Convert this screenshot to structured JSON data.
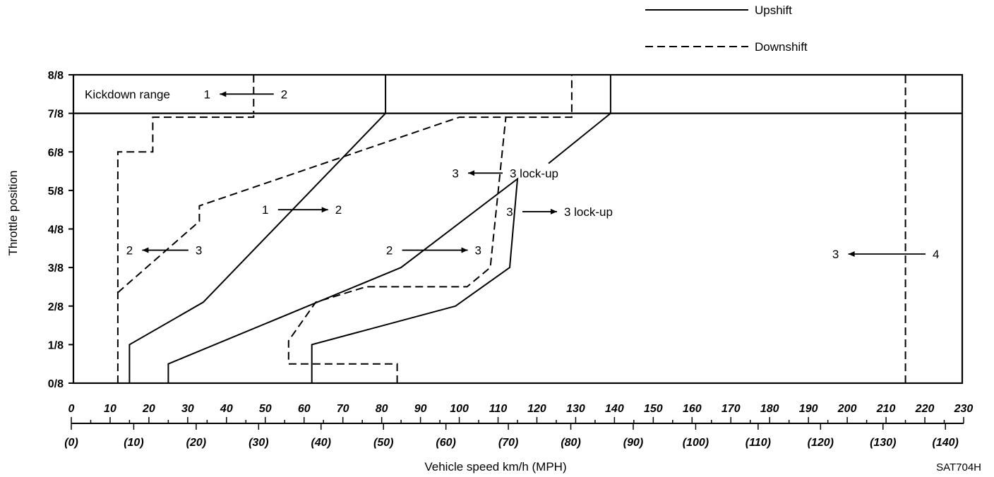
{
  "chart_data": {
    "type": "line",
    "xlabel": "Vehicle speed  km/h (MPH)",
    "ylabel": "Throttle position",
    "xlim": [
      0,
      230
    ],
    "ylim": [
      0,
      8
    ],
    "x_ticks_kmh": [
      "0",
      "10",
      "20",
      "30",
      "40",
      "50",
      "60",
      "70",
      "80",
      "90",
      "100",
      "110",
      "120",
      "130",
      "140",
      "150",
      "160",
      "170",
      "180",
      "190",
      "200",
      "210",
      "220",
      "230"
    ],
    "x_ticks_mph": [
      "(0)",
      "(10)",
      "(20)",
      "(30)",
      "(40)",
      "(50)",
      "(60)",
      "(70)",
      "(80)",
      "(90)",
      "(100)",
      "(110)",
      "(120)",
      "(130)",
      "(140)"
    ],
    "y_ticks": [
      "0/8",
      "1/8",
      "2/8",
      "3/8",
      "4/8",
      "5/8",
      "6/8",
      "7/8",
      "8/8"
    ],
    "legend": {
      "placement": "top-right",
      "entries": [
        {
          "label": "Upshift",
          "style": "solid"
        },
        {
          "label": "Downshift",
          "style": "dashed"
        }
      ]
    },
    "kickdown_label": "Kickdown range",
    "code": "SAT704H",
    "series": [
      {
        "style": "solid",
        "points": [
          [
            15,
            0
          ],
          [
            15,
            1
          ],
          [
            34,
            2.1
          ],
          [
            81,
            7
          ],
          [
            81,
            8
          ]
        ]
      },
      {
        "style": "solid",
        "points": [
          [
            25,
            0
          ],
          [
            25,
            0.5
          ],
          [
            85,
            3
          ],
          [
            115,
            5.3
          ],
          [
            113,
            3
          ],
          [
            99,
            2
          ],
          [
            62,
            1
          ],
          [
            62,
            0
          ]
        ]
      },
      {
        "style": "solid",
        "points": [
          [
            139,
            7
          ],
          [
            123,
            5.7
          ]
        ]
      },
      {
        "style": "solid",
        "points": [
          [
            139,
            7
          ],
          [
            139,
            8
          ]
        ]
      },
      {
        "style": "dashed",
        "points": [
          [
            47,
            8
          ],
          [
            47,
            7
          ]
        ]
      },
      {
        "style": "dashed",
        "points": [
          [
            12,
            0
          ],
          [
            12,
            6
          ],
          [
            21,
            6
          ],
          [
            21,
            6.9
          ],
          [
            47,
            6.9
          ],
          [
            47,
            7
          ]
        ]
      },
      {
        "style": "dashed",
        "points": [
          [
            12,
            2.35
          ],
          [
            33,
            4.2
          ],
          [
            33,
            4.6
          ],
          [
            100,
            6.9
          ],
          [
            129,
            6.9
          ],
          [
            129,
            8
          ]
        ]
      },
      {
        "style": "dashed",
        "points": [
          [
            84,
            0
          ],
          [
            84,
            0.5
          ],
          [
            56,
            0.5
          ],
          [
            56,
            1.1
          ],
          [
            63,
            2.1
          ],
          [
            76,
            2.5
          ],
          [
            102,
            2.5
          ],
          [
            108,
            3
          ],
          [
            112,
            6.9
          ]
        ]
      },
      {
        "style": "dashed",
        "points": [
          [
            215,
            0
          ],
          [
            215,
            8
          ]
        ]
      }
    ],
    "annotations": [
      {
        "left": "1",
        "right": "2",
        "arrow": "left",
        "x": [
          35,
          54
        ],
        "y": 7.5
      },
      {
        "left": "1",
        "right": "2",
        "arrow": "right",
        "x": [
          50,
          68
        ],
        "y": 4.5
      },
      {
        "left": "2",
        "right": "3",
        "arrow": "left",
        "x": [
          15,
          32
        ],
        "y": 3.45
      },
      {
        "left": "2",
        "right": "3",
        "arrow": "right",
        "x": [
          82,
          104
        ],
        "y": 3.45
      },
      {
        "left": "3",
        "right": "3 lock-up",
        "arrow": "left",
        "x": [
          99,
          113
        ],
        "y": 5.45
      },
      {
        "left": "3",
        "right": "3 lock-up",
        "arrow": "right",
        "x": [
          113,
          127
        ],
        "y": 4.45
      },
      {
        "left": "3",
        "right": "4",
        "arrow": "left",
        "x": [
          197,
          222
        ],
        "y": 3.35
      }
    ]
  }
}
